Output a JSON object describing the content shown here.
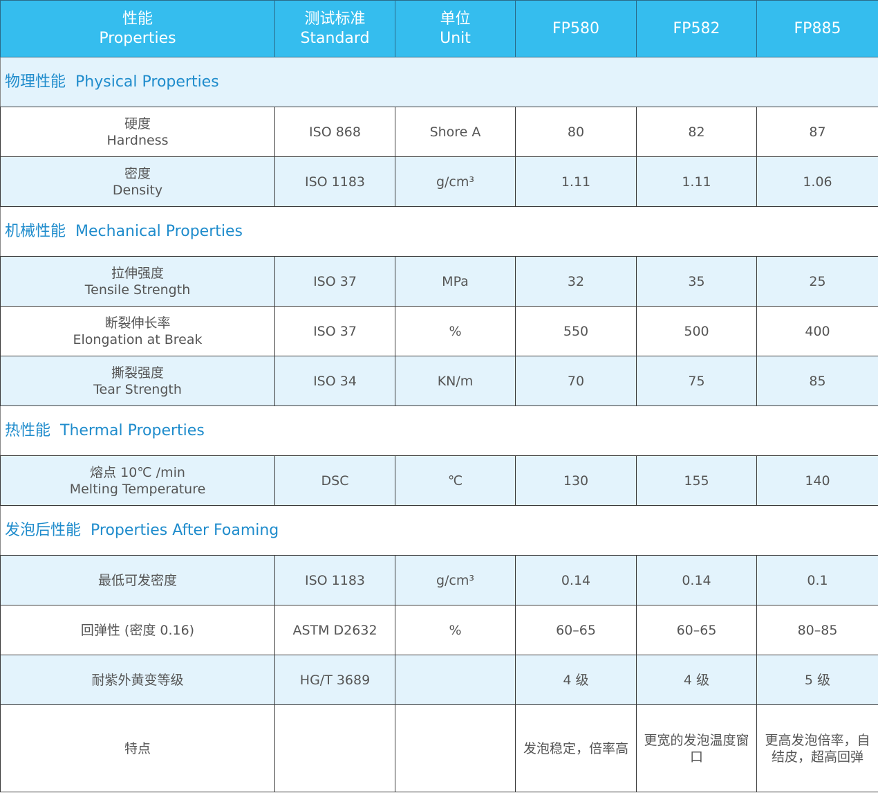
{
  "header": {
    "properties_cn": "性能",
    "properties_en": "Properties",
    "standard_cn": "测试标准",
    "standard_en": "Standard",
    "unit_cn": "单位",
    "unit_en": "Unit",
    "products": [
      "FP580",
      "FP582",
      "FP885"
    ]
  },
  "colors": {
    "header_bg": "#35bdee",
    "section_text": "#1f8ccc",
    "row_alt_bg": "#e3f3fc"
  },
  "rows": [
    {
      "type": "section",
      "cn": "物理性能",
      "en": "Physical Properties",
      "blue": true
    },
    {
      "type": "data",
      "cn": "硬度",
      "en": "Hardness",
      "standard": "ISO 868",
      "unit": "Shore A",
      "values": [
        "80",
        "82",
        "87"
      ],
      "blue": false
    },
    {
      "type": "data",
      "cn": "密度",
      "en": "Density",
      "standard": "ISO 1183",
      "unit": "g/cm³",
      "values": [
        "1.11",
        "1.11",
        "1.06"
      ],
      "blue": true
    },
    {
      "type": "section",
      "cn": "机械性能",
      "en": "Mechanical Properties",
      "blue": false
    },
    {
      "type": "data",
      "cn": "拉伸强度",
      "en": "Tensile Strength",
      "standard": "ISO 37",
      "unit": "MPa",
      "values": [
        "32",
        "35",
        "25"
      ],
      "blue": true
    },
    {
      "type": "data",
      "cn": "断裂伸长率",
      "en": "Elongation at Break",
      "standard": "ISO 37",
      "unit": "%",
      "values": [
        "550",
        "500",
        "400"
      ],
      "blue": false
    },
    {
      "type": "data",
      "cn": "撕裂强度",
      "en": "Tear Strength",
      "standard": "ISO 34",
      "unit": "KN/m",
      "values": [
        "70",
        "75",
        "85"
      ],
      "blue": true
    },
    {
      "type": "section",
      "cn": "热性能",
      "en": "Thermal Properties",
      "blue": false
    },
    {
      "type": "data",
      "cn": "熔点 10℃ /min",
      "en": "Melting Temperature",
      "standard": "DSC",
      "unit": "℃",
      "values": [
        "130",
        "155",
        "140"
      ],
      "blue": true
    },
    {
      "type": "section",
      "cn": "发泡后性能",
      "en": "Properties After Foaming",
      "blue": false
    },
    {
      "type": "data",
      "cn": "最低可发密度",
      "en": "",
      "standard": "ISO 1183",
      "unit": "g/cm³",
      "values": [
        "0.14",
        "0.14",
        "0.1"
      ],
      "blue": true
    },
    {
      "type": "data",
      "cn": "回弹性 (密度 0.16)",
      "en": "",
      "standard": "ASTM D2632",
      "unit": "%",
      "values": [
        "60–65",
        "60–65",
        "80–85"
      ],
      "blue": false
    },
    {
      "type": "data",
      "cn": "耐紫外黄变等级",
      "en": "",
      "standard": "HG/T 3689",
      "unit": "",
      "values": [
        "4 级",
        "4 级",
        "5 级"
      ],
      "blue": true
    },
    {
      "type": "feature",
      "cn": "特点",
      "en": "",
      "standard": "",
      "unit": "",
      "values": [
        "发泡稳定，倍率高",
        "更宽的发泡温度窗口",
        "更高发泡倍率，自结皮，超高回弹"
      ],
      "blue": false
    }
  ]
}
